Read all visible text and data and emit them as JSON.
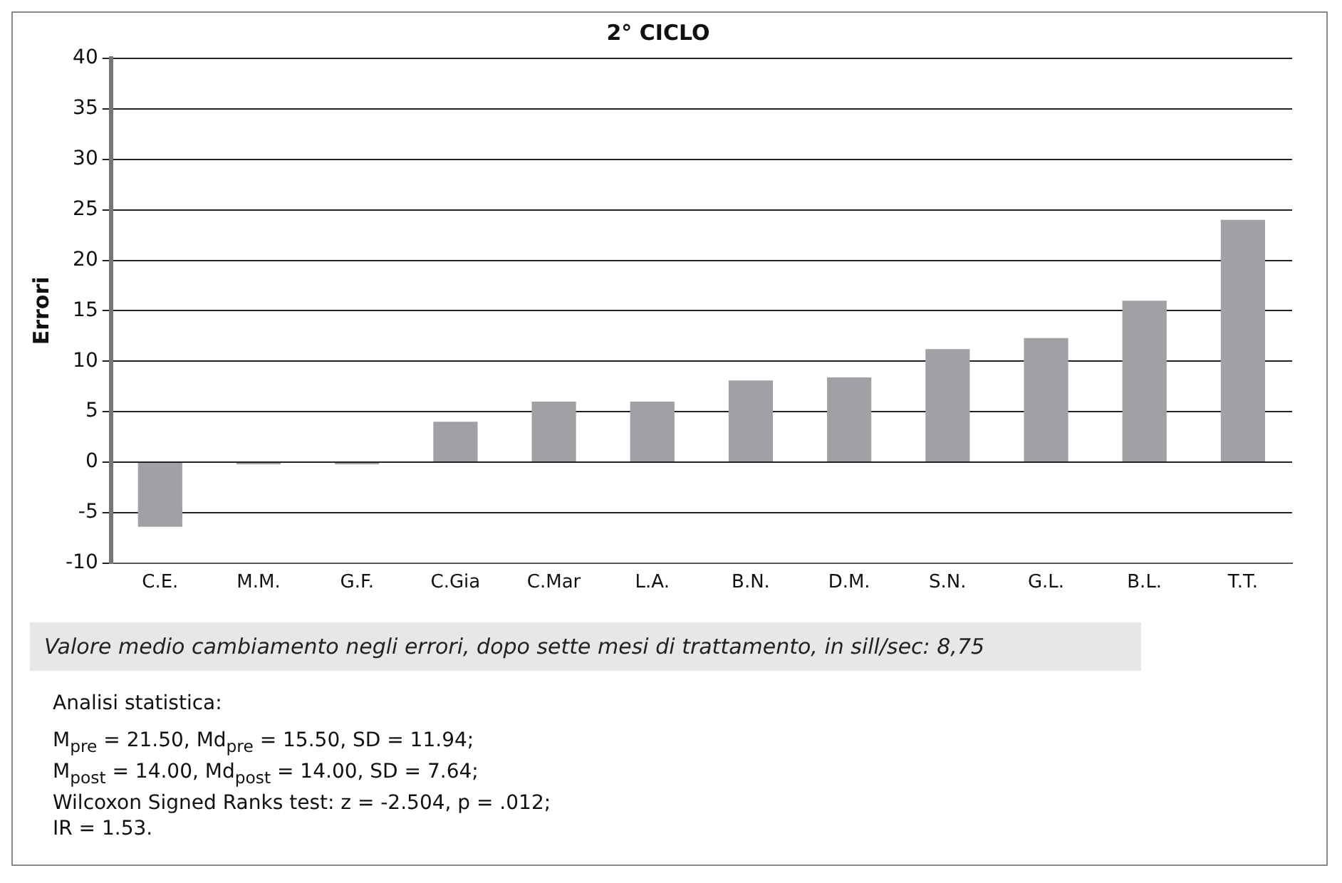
{
  "chart_data": {
    "type": "bar",
    "title": "2° CICLO",
    "ylabel": "Errori",
    "categories": [
      "C.E.",
      "M.M.",
      "G.F.",
      "C.Gia",
      "C.Mar",
      "L.A.",
      "B.N.",
      "D.M.",
      "S.N.",
      "G.L.",
      "B.L.",
      "T.T."
    ],
    "values": [
      -6.4,
      -0.2,
      -0.2,
      4,
      6,
      6,
      8.1,
      8.4,
      11.2,
      12.3,
      16,
      24
    ],
    "color": "#a0a1a4",
    "ylim": [
      -10,
      40
    ],
    "yticks": [
      -10,
      -5,
      0,
      5,
      10,
      15,
      20,
      25,
      30,
      35,
      40
    ],
    "grid": "y",
    "legend": false,
    "annotations": [
      "Valore medio cambiamento negli errori, dopo sette mesi di trattamento, in sill/sec: 8,75",
      "Analisi statistica:",
      "M$_{pre}$ = 21.50, Md$_{pre}$ = 15.50, SD = 11.94;",
      "M$_{post}$ = 14.00, Md$_{post}$ = 14.00, SD = 7.64;",
      "Wilcoxon Signed Ranks test: z = -2.504, p = .012;",
      "IR = 1.53."
    ]
  }
}
